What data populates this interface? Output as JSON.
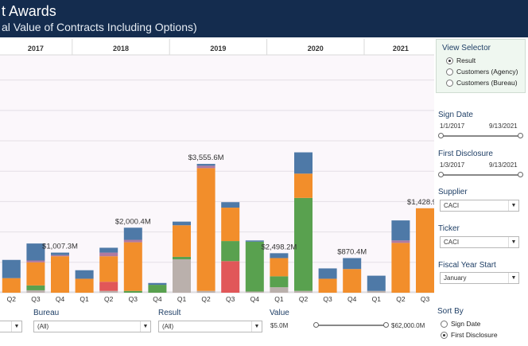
{
  "header": {
    "title": "t Awards",
    "subtitle": "al Value of Contracts Including Options)"
  },
  "colors": {
    "blue": "#4e79a7",
    "orange": "#f28e2b",
    "green": "#59a14f",
    "red": "#e15759",
    "gray": "#bab0ac",
    "purple": "#af7aa1",
    "background": "#fbf7fb"
  },
  "chart_data": {
    "type": "bar",
    "stacked": true,
    "years": [
      "2017",
      "2018",
      "2019",
      "2020",
      "2021"
    ],
    "categories": [
      "Q2",
      "Q3",
      "Q4",
      "Q1",
      "Q2",
      "Q3",
      "Q4",
      "Q1",
      "Q2",
      "Q3",
      "Q4",
      "Q1",
      "Q2",
      "Q3",
      "Q4",
      "Q1",
      "Q2",
      "Q3"
    ],
    "year_spans": [
      [
        0,
        2
      ],
      [
        3,
        6
      ],
      [
        7,
        10
      ],
      [
        11,
        14
      ],
      [
        15,
        17
      ]
    ],
    "ylim": [
      0,
      3600
    ],
    "series": [
      {
        "color": "blue",
        "values": [
          300,
          280,
          40,
          140,
          80,
          200,
          30,
          60,
          30,
          90,
          20,
          80,
          350,
          170,
          180,
          250,
          330,
          0
        ]
      },
      {
        "color": "purple",
        "values": [
          0,
          30,
          20,
          0,
          60,
          40,
          0,
          0,
          40,
          0,
          0,
          0,
          0,
          0,
          0,
          0,
          40,
          0
        ]
      },
      {
        "color": "orange",
        "values": [
          240,
          380,
          600,
          230,
          420,
          800,
          0,
          520,
          2020,
          550,
          0,
          300,
          400,
          230,
          390,
          0,
          820,
          1390
        ]
      },
      {
        "color": "green",
        "values": [
          0,
          80,
          0,
          0,
          0,
          30,
          130,
          40,
          0,
          330,
          820,
          180,
          1530,
          0,
          0,
          0,
          0,
          0
        ]
      },
      {
        "color": "red",
        "values": [
          0,
          0,
          0,
          0,
          150,
          0,
          0,
          0,
          0,
          520,
          0,
          0,
          0,
          0,
          0,
          0,
          0,
          0
        ]
      },
      {
        "color": "gray",
        "values": [
          0,
          40,
          0,
          0,
          30,
          0,
          0,
          550,
          30,
          0,
          20,
          90,
          30,
          0,
          0,
          30,
          0,
          0
        ]
      }
    ],
    "data_labels": [
      {
        "index": 2,
        "text": "$1,007.3M"
      },
      {
        "index": 5,
        "text": "$2,000.4M"
      },
      {
        "index": 8,
        "text": "$3,555.6M"
      },
      {
        "index": 11,
        "text": "$2,498.2M"
      },
      {
        "index": 14,
        "text": "$870.4M"
      },
      {
        "index": 17,
        "text": "$1,428.9M"
      }
    ],
    "grid": true
  },
  "sidebar": {
    "view_selector": {
      "title": "View Selector",
      "options": [
        "Result",
        "Customers (Agency)",
        "Customers (Bureau)"
      ],
      "selected": 0
    },
    "sign_date": {
      "title": "Sign Date",
      "from": "1/1/2017",
      "to": "9/13/2021"
    },
    "first_disclosure": {
      "title": "First Disclosure",
      "from": "1/3/2017",
      "to": "9/13/2021"
    },
    "supplier": {
      "title": "Supplier",
      "value": "CACI"
    },
    "ticker": {
      "title": "Ticker",
      "value": "CACI"
    },
    "fiscal_year_start": {
      "title": "Fiscal Year Start",
      "value": "January"
    },
    "sort_by": {
      "title": "Sort By",
      "options": [
        "Sign Date",
        "First Disclosure"
      ],
      "selected": 1
    }
  },
  "bottom": {
    "bureau": {
      "label": "Bureau",
      "value": "(All)"
    },
    "result": {
      "label": "Result",
      "value": "(All)"
    },
    "value": {
      "label": "Value",
      "min": "$5.0M",
      "max": "$62,000.0M"
    }
  },
  "icons": {
    "dropdown": "dropdown-arrow-icon"
  }
}
